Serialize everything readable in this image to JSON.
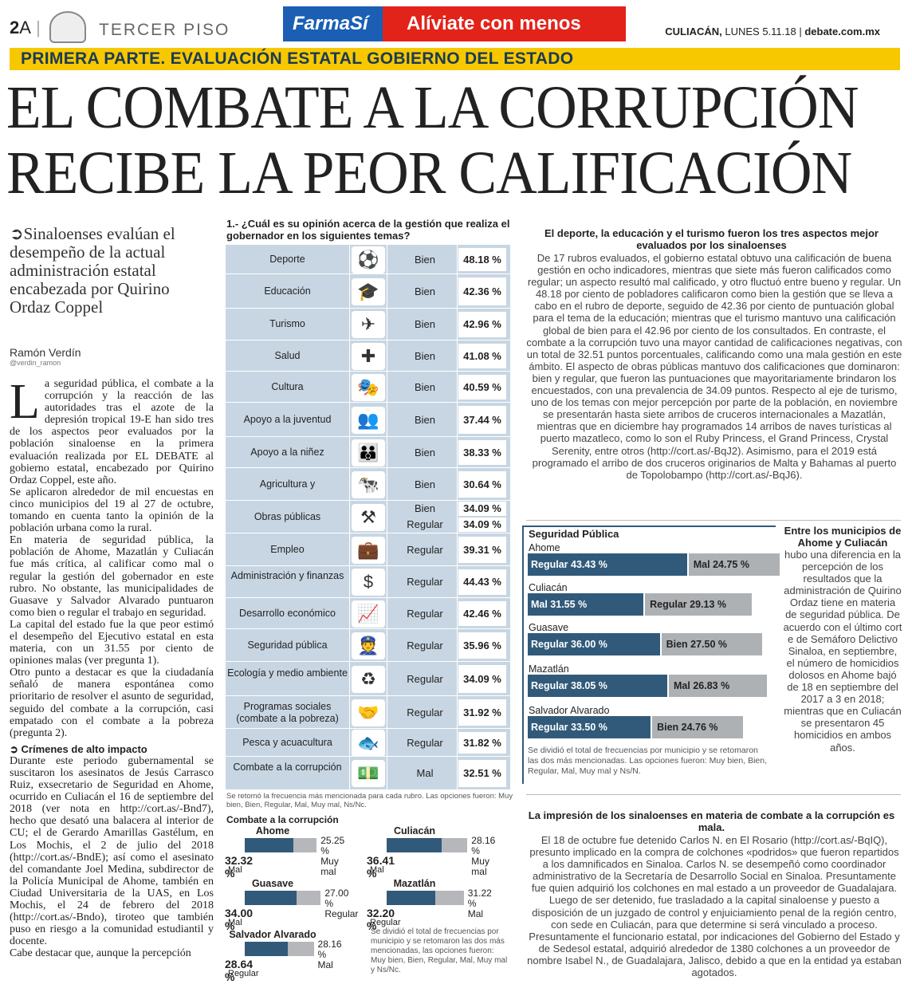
{
  "masthead": {
    "page_num": "2",
    "page_letter": "A",
    "section": "TERCER PISO",
    "ad_brand": "FarmaSí",
    "ad_slogan": "Alíviate con menos",
    "city": "CULIACÁN,",
    "date": "LUNES 5.11.18",
    "site": "debate.com.mx"
  },
  "banner": "PRIMERA PARTE. EVALUACIÓN ESTATAL GOBIERNO DEL ESTADO",
  "headline": [
    "EL COMBATE A LA CORRUPCIÓN",
    "RECIBE LA PEOR CALIFICACIÓN"
  ],
  "deck": "Sinaloenses evalúan el desempeño de la actual administración estatal encabezada por Quirino Ordaz Coppel",
  "byline": {
    "name": "Ramón Verdín",
    "handle": "@verdin_ramon"
  },
  "body": {
    "dropcap": "L",
    "p1": "a seguridad pública, el combate a la corrupción y la reacción de las autoridades tras el azote de la depresión tropical 19-E han sido tres de los aspectos peor evaluados por la población sinaloense en la primera evaluación realizada por EL DEBATE al gobierno estatal, encabezado por Quirino Ordaz Coppel, este año.",
    "p2": "Se aplicaron alrededor de mil encuestas en cinco municipios del 19 al 27 de octubre, tomando en cuenta tanto la opinión de la población urbana como la rural.",
    "p3": "En materia de seguridad pública, la población de Ahome, Mazatlán y Culiacán fue más crítica, al calificar como mal o regular la gestión del gobernador en este rubro. No obstante, las municipalidades de Guasave y Salvador Alvarado puntuaron como bien o regular el trabajo en seguridad.",
    "p4": "La capital del estado fue la que peor estimó el desempeño del Ejecutivo estatal en esta materia, con un 31.55 por ciento de opiniones malas (ver pregunta 1).",
    "p5": "Otro punto a destacar es que la ciudadanía señaló de manera espontánea como prioritario de resolver el asunto de seguridad, seguido del combate a la corrupción, casi empatado con el combate a la pobreza (pregunta 2).",
    "sub": "Crímenes de alto impacto",
    "p6": "Durante este periodo gubernamental se suscitaron los asesinatos de Jesús Carrasco Ruiz, exsecretario de Seguridad en Ahome, ocurrido en Culiacán el 16 de septiembre del 2018 (ver nota en http://cort.as/-Bnd7), hecho que desató una balacera al interior de CU; el de Gerardo Amarillas Gastélum, en Los Mochis, el 2 de julio del 2018 (http://cort.as/-BndE); así como el asesinato del comandante Joel Medina, subdirector de la Policía Municipal de Ahome, también en Ciudad Universitaria de la UAS, en Los Mochis, el 24 de febrero del 2018 (http://cort.as/-Bndo), tiroteo que también puso en riesgo a la comunidad estudiantil y docente.",
    "p7": "Cabe destacar que, aunque la percepción"
  },
  "table": {
    "question": "1.- ¿Cuál es su opinión acerca de la gestión que realiza el gobernador en los siguientes temas?",
    "rows": [
      {
        "label": "Deporte",
        "icon": "⚽",
        "cal": "Bien",
        "pct": "48.18 %"
      },
      {
        "label": "Educación",
        "icon": "🎓",
        "cal": "Bien",
        "pct": "42.36 %"
      },
      {
        "label": "Turismo",
        "icon": "✈",
        "cal": "Bien",
        "pct": "42.96 %"
      },
      {
        "label": "Salud",
        "icon": "✚",
        "cal": "Bien",
        "pct": "41.08 %"
      },
      {
        "label": "Cultura",
        "icon": "🎭",
        "cal": "Bien",
        "pct": "40.59 %"
      },
      {
        "label": "Apoyo a la juventud",
        "icon": "👥",
        "cal": "Bien",
        "pct": "37.44 %"
      },
      {
        "label": "Apoyo a la niñez",
        "icon": "👪",
        "cal": "Bien",
        "pct": "38.33 %"
      },
      {
        "label": "Agricultura y",
        "icon": "🐄",
        "cal": "Bien",
        "pct": "30.64 %"
      },
      {
        "label": "Obras públicas",
        "icon": "⚒",
        "cal": "Bien",
        "pct": "34.09 %",
        "cal2": "Regular",
        "pct2": "34.09 %"
      },
      {
        "label": "Empleo",
        "icon": "💼",
        "cal": "Regular",
        "pct": "39.31 %"
      },
      {
        "label": "Administración y finanzas",
        "icon": "$",
        "cal": "Regular",
        "pct": "44.43 %"
      },
      {
        "label": "Desarrollo económico",
        "icon": "📈",
        "cal": "Regular",
        "pct": "42.46 %"
      },
      {
        "label": "Seguridad pública",
        "icon": "👮",
        "cal": "Regular",
        "pct": "35.96 %"
      },
      {
        "label": "Ecología y medio ambiente",
        "icon": "♻",
        "cal": "Regular",
        "pct": "34.09 %"
      },
      {
        "label": "Programas sociales (combate a la pobreza)",
        "icon": "🤝",
        "cal": "Regular",
        "pct": "31.92 %"
      },
      {
        "label": "Pesca y acuacultura",
        "icon": "🐟",
        "cal": "Regular",
        "pct": "31.82 %"
      },
      {
        "label": "Combate a la corrupción",
        "icon": "💵",
        "cal": "Mal",
        "pct": "32.51 %"
      }
    ],
    "note": "Se retomó la frecuencia más mencionada para cada rubro. Las opciones fueron: Muy bien, Bien, Regular, Mal, Muy mal, Ns/Nc."
  },
  "combate": {
    "title": "Combate a la corrupción",
    "items": [
      {
        "name": "Ahome",
        "p1": "32.32 %",
        "l1": "Mal",
        "p2": "25.25 %",
        "l2": "Muy mal"
      },
      {
        "name": "Culiacán",
        "p1": "36.41 %",
        "l1": "Mal",
        "p2": "28.16 %",
        "l2": "Muy mal"
      },
      {
        "name": "Guasave",
        "p1": "34.00 %",
        "l1": "Mal",
        "p2": "27.00 %",
        "l2": "Regular"
      },
      {
        "name": "Mazatlán",
        "p1": "32.20 %",
        "l1": "Regular",
        "p2": "31.22 %",
        "l2": "Mal"
      },
      {
        "name": "Salvador Alvarado",
        "p1": "28.64 %",
        "l1": "Regular",
        "p2": "28.16 %",
        "l2": "Mal"
      }
    ],
    "note": "Se dividió el total de frecuencias por municipio y se retomaron las dos más mencionadas, las opciones fueron: Muy bien, Bien, Regular, Mal, Muy mal y Ns/Nc."
  },
  "right1": {
    "head": "El deporte, la educación y el turismo fueron los tres aspectos mejor evaluados por los sinaloenses",
    "text": "De 17 rubros evaluados, el gobierno estatal obtuvo una calificación de buena gestión en ocho indicadores, mientras que siete más fueron calificados como regular; un aspecto resultó mal calificado, y otro fluctuó entre bueno y regular. Un 48.18 por ciento de pobladores calificaron como bien la gestión que se lleva a cabo en el rubro de deporte, seguido de 42.36 por ciento de puntuación global para el tema de la educación; mientras que el turismo mantuvo una calificación global de bien para el 42.96 por ciento de los consultados. En contraste, el combate a la corrupción tuvo una mayor cantidad de calificaciones negativas, con un total de 32.51 puntos porcentuales, calificando como una mala gestión en este ámbito. El aspecto de obras públicas mantuvo dos calificaciones que dominaron: bien y regular, que fueron las puntuaciones que mayoritariamente brindaron los encuestados, con una prevalencia de 34.09 puntos. Respecto al eje de turismo, uno de los temas con mejor percepción por parte de la población, en noviembre se presentarán hasta siete arribos de cruceros internacionales a Mazatlán, mientras que en diciembre hay programados 14 arribos de naves turísticas al puerto mazatleco, como lo son el Ruby Princess, el Grand Princess, Crystal Serenity, entre otros (http://cort.as/-BqJ2). Asimismo, para el 2019 está programado el arribo de dos cruceros originarios de Malta y Bahamas al puerto de Topolobampo (http://cort.as/-BqJ6)."
  },
  "seguridad": {
    "title": "Seguridad Pública",
    "items": [
      {
        "mun": "Ahome",
        "a": "Regular 43.43 %",
        "av": 43.43,
        "b": "Mal 24.75 %",
        "bv": 24.75
      },
      {
        "mun": "Culiacán",
        "a": "Mal 31.55 %",
        "av": 31.55,
        "b": "Regular 29.13 %",
        "bv": 29.13
      },
      {
        "mun": "Guasave",
        "a": "Regular 36.00 %",
        "av": 36.0,
        "b": "Bien 27.50 %",
        "bv": 27.5
      },
      {
        "mun": "Mazatlán",
        "a": "Regular 38.05 %",
        "av": 38.05,
        "b": "Mal 26.83 %",
        "bv": 26.83
      },
      {
        "mun": "Salvador Alvarado",
        "a": "Regular 33.50 %",
        "av": 33.5,
        "b": "Bien 24.76 %",
        "bv": 24.76
      }
    ],
    "note": "Se dividió el total de frecuencias por municipio y se retomaron las dos más mencionadas. Las opciones fueron: Muy bien, Bien, Regular, Mal, Muy mal y Ns/N."
  },
  "side": {
    "head": "Entre los municipios de Ahome y Culiacán",
    "text": "hubo una diferencia en la percepción de los resultados que la administración de Quirino Ordaz tiene en materia de seguridad pública. De acuerdo con el último cort e de Semáforo Delictivo Sinaloa, en septiembre, el número de homicidios dolosos en Ahome bajó de 18 en septiembre del 2017 a 3 en 2018; mientras que en Culiacán se presentaron 45 homicidios en ambos años."
  },
  "right2": {
    "head": "La impresión de los sinaloenses en materia de combate a la corrupción es mala.",
    "text": "El 18 de octubre fue detenido Carlos N. en El Rosario (http://cort.as/-BqIQ), presunto implicado en la compra de colchones «podridos» que fueron repartidos a los damnificados en Sinaloa. Carlos N. se desempeñó como coordinador administrativo de la Secretaría de Desarrollo Social en Sinaloa. Presuntamente fue quien adquirió los colchones en mal estado a un proveedor de Guadalajara. Luego de ser detenido, fue trasladado a la capital sinaloense y puesto a disposición de un juzgado de control y enjuiciamiento penal de la región centro, con sede en Culiacán, para que determine si será vinculado a proceso. Presuntamente el funcionario estatal, por indicaciones del Gobierno del Estado y de Sedesol estatal, adquirió alrededor de 1380 colchones a un proveedor de nombre Isabel N., de Guadalajara, Jalisco, debido a que en la entidad ya estaban agotados."
  }
}
